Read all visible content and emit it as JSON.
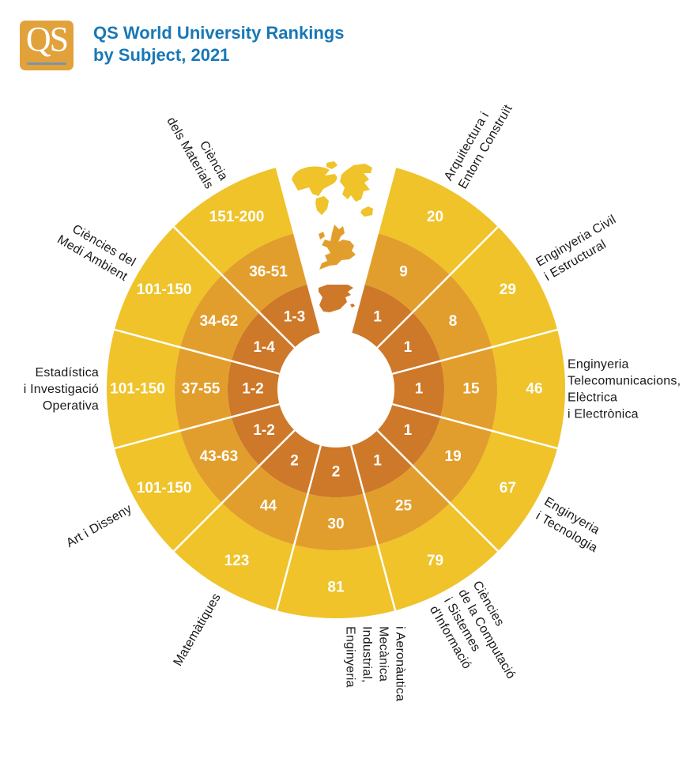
{
  "header": {
    "logo_text": "QS",
    "title_line1": "QS World University Rankings",
    "title_line2": "by Subject, 2021"
  },
  "chart_data": {
    "type": "sunburst",
    "title": "QS World University Rankings by Subject, 2021",
    "rings": [
      {
        "icon": "world-map",
        "color": "#EFC329"
      },
      {
        "icon": "europe-map",
        "color": "#E29E2C"
      },
      {
        "icon": "spain-map",
        "color": "#CE7829"
      }
    ],
    "segments": [
      {
        "label_lines": [
          "Arquitectura i",
          "Entorn Construït"
        ],
        "values": [
          "20",
          "9",
          "1"
        ],
        "label_rot": -60,
        "label_anchor": "start"
      },
      {
        "label_lines": [
          "Enginyeria Civil",
          "i Estructural"
        ],
        "values": [
          "29",
          "8",
          "1"
        ],
        "label_rot": -30,
        "label_anchor": "start"
      },
      {
        "label_lines": [
          "Enginyeria",
          "Telecomunicacions,",
          "Elèctrica",
          "i Electrònica"
        ],
        "values": [
          "46",
          "15",
          "1"
        ],
        "label_rot": 0,
        "label_anchor": "start",
        "label_r": 293
      },
      {
        "label_lines": [
          "Enginyeria",
          "i Tecnologia"
        ],
        "values": [
          "67",
          "19",
          "1"
        ],
        "label_rot": 30,
        "label_anchor": "start"
      },
      {
        "label_lines": [
          "Ciències",
          "de la Computació",
          "i Sistemes",
          "d'Informació"
        ],
        "values": [
          "79",
          "25",
          "1"
        ],
        "label_rot": 60,
        "label_anchor": "start"
      },
      {
        "label_lines": [
          "Enginyeria",
          "Industrial,",
          "Mecànica",
          "i Aeronàutica"
        ],
        "values": [
          "81",
          "30",
          "2"
        ],
        "label_rot": 90,
        "label_anchor": "start",
        "flip_lines": true,
        "label_dx": 50
      },
      {
        "label_lines": [
          "Matemàtiques"
        ],
        "values": [
          "123",
          "44",
          "2"
        ],
        "label_rot": -60,
        "label_anchor": "end"
      },
      {
        "label_lines": [
          "Art i Disseny"
        ],
        "values": [
          "101-150",
          "43-63",
          "1-2"
        ],
        "label_rot": -30,
        "label_anchor": "end"
      },
      {
        "label_lines": [
          "Estadística",
          "i Investigació",
          "Operativa"
        ],
        "values": [
          "101-150",
          "37-55",
          "1-2"
        ],
        "label_rot": 0,
        "label_anchor": "end"
      },
      {
        "label_lines": [
          "Ciències del",
          "Medi Ambient"
        ],
        "values": [
          "101-150",
          "34-62",
          "1-4"
        ],
        "label_rot": 30,
        "label_anchor": "end"
      },
      {
        "label_lines": [
          "Ciència",
          "dels Materials"
        ],
        "values": [
          "151-200",
          "36-51",
          "1-3"
        ],
        "label_rot": 60,
        "label_anchor": "end"
      }
    ],
    "layout": {
      "center": [
        425,
        492
      ],
      "ring_radii": [
        74,
        137,
        204,
        290
      ],
      "value_radii": [
        251,
        171,
        105
      ],
      "label_radius": 300,
      "label_line_height": 21,
      "segment_degrees": 30,
      "start_angle_deg": 15,
      "gap_degrees": 30,
      "divider_color": "#FFFFFF",
      "text_color": "#1A1A1A",
      "value_text_color": "#FFFFFF"
    }
  },
  "colors": {
    "title_blue": "#1878B5",
    "logo_gold": "#E2A23B",
    "logo_underline": "#7E93A8"
  }
}
